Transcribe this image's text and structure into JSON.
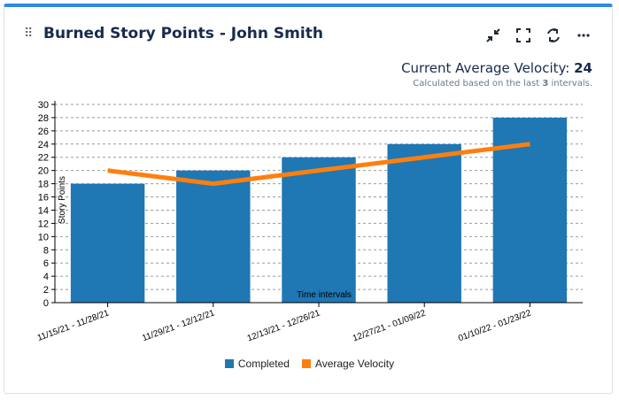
{
  "header": {
    "title": "Burned Story Points - John Smith"
  },
  "velocity": {
    "label": "Current Average Velocity:",
    "value": "24",
    "sub_prefix": "Calculated based on the last",
    "sub_count": "3",
    "sub_suffix": "intervals."
  },
  "icons": {
    "drag": "drag-handle-icon",
    "minimize": "minimize-icon",
    "fullscreen": "fullscreen-icon",
    "refresh": "refresh-icon",
    "more": "more-icon"
  },
  "colors": {
    "completed": "#1f77b4",
    "velocity": "#ff7f0e",
    "accent": "#2f8ae0"
  },
  "chart_data": {
    "type": "bar",
    "categories": [
      "11/15/21 - 11/28/21",
      "11/29/21 - 12/12/21",
      "12/13/21 - 12/26/21",
      "12/27/21 - 01/09/22",
      "01/10/22 - 01/23/22"
    ],
    "series": [
      {
        "name": "Completed",
        "type": "bar",
        "values": [
          18,
          20,
          22,
          24,
          28
        ]
      },
      {
        "name": "Average Velocity",
        "type": "line",
        "values": [
          20,
          18,
          20,
          22,
          24
        ]
      }
    ],
    "xlabel": "Time intervals",
    "ylabel": "Story Points",
    "ylim": [
      0,
      30
    ],
    "yticks": [
      0,
      2,
      4,
      6,
      8,
      10,
      12,
      14,
      16,
      18,
      20,
      22,
      24,
      26,
      28,
      30
    ],
    "grid": true,
    "legend": "bottom"
  }
}
